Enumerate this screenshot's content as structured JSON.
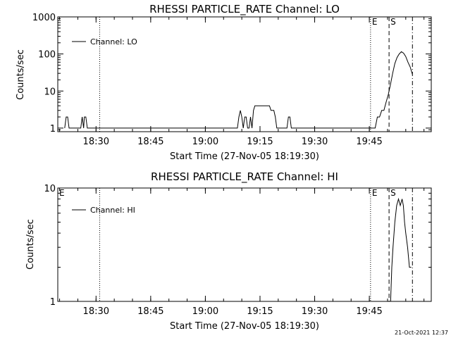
{
  "chart_data": [
    {
      "type": "line",
      "title": "RHESSI PARTICLE_RATE Channel: LO",
      "xlabel": "Start Time (27-Nov-05 18:19:30)",
      "ylabel": "Counts/sec",
      "yscale": "log",
      "xlim": [
        "18:19:30",
        "20:02:00"
      ],
      "ylim": [
        0.8,
        1000
      ],
      "x_ticks": [
        "18:30",
        "18:45",
        "19:00",
        "19:15",
        "19:30",
        "19:45"
      ],
      "y_ticks": [
        "1",
        "10",
        "100",
        "1000"
      ],
      "legend": {
        "position": "top-left",
        "entries": [
          "Channel: LO"
        ]
      },
      "markers": [
        {
          "label": "",
          "time": "18:31:00",
          "style": "dotted"
        },
        {
          "label": "E",
          "time": "19:45:20",
          "style": "dotted"
        },
        {
          "label": "S",
          "time": "19:50:25",
          "style": "dashed"
        },
        {
          "label": "",
          "time": "19:56:50",
          "style": "dashdot"
        }
      ],
      "series": [
        {
          "name": "Channel: LO",
          "x": [
            "18:21:24",
            "18:21:48",
            "18:22:12",
            "18:22:36",
            "18:25:48",
            "18:26:12",
            "18:26:36",
            "18:26:48",
            "18:27:12",
            "18:27:36",
            "18:28:00",
            "19:08:24",
            "19:08:48",
            "19:09:12",
            "19:09:36",
            "19:10:00",
            "19:10:24",
            "19:10:48",
            "19:11:12",
            "19:11:36",
            "19:12:00",
            "19:12:24",
            "19:12:48",
            "19:13:12",
            "19:13:36",
            "19:14:00",
            "19:15:12",
            "19:16:24",
            "19:17:36",
            "19:18:00",
            "19:18:24",
            "19:18:48",
            "19:19:12",
            "19:19:36",
            "19:20:00",
            "19:20:24",
            "19:20:48",
            "19:21:12",
            "19:21:36",
            "19:22:00",
            "19:22:24",
            "19:22:48",
            "19:23:12",
            "19:23:36",
            "19:24:00",
            "19:24:24",
            "19:46:00",
            "19:46:36",
            "19:47:12",
            "19:47:48",
            "19:48:24",
            "19:49:00",
            "19:49:36",
            "19:50:12",
            "19:50:48",
            "19:51:24",
            "19:52:00",
            "19:52:36",
            "19:53:12",
            "19:53:48",
            "19:54:24",
            "19:55:00",
            "19:55:36",
            "19:56:12",
            "19:56:50"
          ],
          "y": [
            1,
            2,
            2,
            1,
            1,
            2,
            1,
            2,
            2,
            1,
            1,
            1,
            1,
            2,
            3,
            2,
            1,
            2,
            2,
            1,
            1,
            2,
            1,
            3,
            4,
            4,
            4,
            4,
            4,
            3,
            3,
            3,
            2,
            1,
            1,
            1,
            1,
            1,
            1,
            1,
            1,
            2,
            2,
            1,
            1,
            1,
            1,
            1,
            2,
            2,
            3,
            3,
            5,
            8,
            15,
            30,
            55,
            80,
            100,
            115,
            105,
            85,
            60,
            45,
            28
          ]
        }
      ]
    },
    {
      "type": "line",
      "title": "RHESSI PARTICLE_RATE Channel: HI",
      "xlabel": "Start Time (27-Nov-05 18:19:30)",
      "ylabel": "Counts/sec",
      "yscale": "log",
      "xlim": [
        "18:19:30",
        "20:02:00"
      ],
      "ylim": [
        1,
        10
      ],
      "x_ticks": [
        "18:30",
        "18:45",
        "19:00",
        "19:15",
        "19:30",
        "19:45"
      ],
      "y_ticks": [
        "1",
        "10"
      ],
      "legend": {
        "position": "top-left",
        "entries": [
          "Channel: HI"
        ]
      },
      "markers": [
        {
          "label": "E",
          "time": "18:19:30",
          "style": "none"
        },
        {
          "label": "",
          "time": "18:31:00",
          "style": "dotted"
        },
        {
          "label": "E",
          "time": "19:45:20",
          "style": "dotted"
        },
        {
          "label": "S",
          "time": "19:50:25",
          "style": "dashed"
        },
        {
          "label": "",
          "time": "19:56:50",
          "style": "dashdot"
        }
      ],
      "series": [
        {
          "name": "Channel: HI",
          "x": [
            "19:50:50",
            "19:51:10",
            "19:51:30",
            "19:52:00",
            "19:52:30",
            "19:53:00",
            "19:53:30",
            "19:54:00",
            "19:54:20",
            "19:54:40",
            "19:55:00",
            "19:55:30",
            "19:56:00",
            "19:56:30"
          ],
          "y": [
            1,
            2,
            3,
            5,
            7,
            8,
            7,
            8,
            7,
            5,
            4,
            3,
            2,
            2
          ]
        }
      ]
    }
  ],
  "footer": {
    "timestamp": "21-Oct-2021 12:37"
  }
}
